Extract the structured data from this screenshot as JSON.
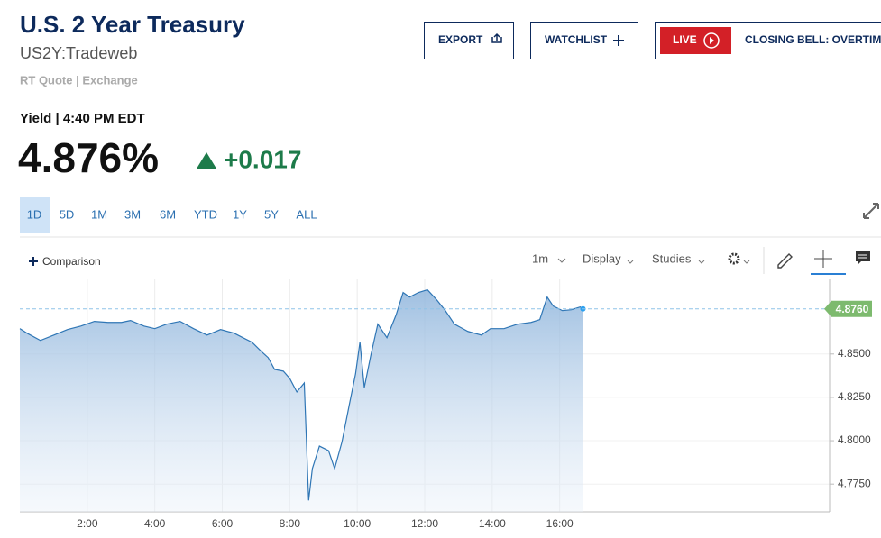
{
  "header": {
    "title": "U.S. 2 Year Treasury",
    "symbol": "US2Y:Tradeweb",
    "source": "RT Quote | Exchange"
  },
  "buttons": {
    "export": "EXPORT",
    "watchlist": "WATCHLIST",
    "live": "LIVE",
    "program": "CLOSING BELL: OVERTIME"
  },
  "quote": {
    "label": "Yield | 4:40 PM EDT",
    "price": "4.876%",
    "change": "+0.017"
  },
  "ranges": [
    "1D",
    "5D",
    "1M",
    "3M",
    "6M",
    "YTD",
    "1Y",
    "5Y",
    "ALL"
  ],
  "toolbar": {
    "comparison": "Comparison",
    "interval": "1m",
    "display": "Display",
    "studies": "Studies"
  },
  "chart_data": {
    "type": "area",
    "color": "#2f76b5",
    "x": [
      0,
      0.21,
      0.61,
      1.01,
      1.41,
      1.81,
      2.21,
      2.61,
      3.01,
      3.28,
      3.68,
      4.0,
      4.35,
      4.75,
      5.15,
      5.55,
      5.95,
      6.35,
      6.61,
      6.88,
      7.15,
      7.36,
      7.55,
      7.81,
      8.0,
      8.21,
      8.43,
      8.56,
      8.67,
      8.88,
      9.15,
      9.33,
      9.55,
      9.76,
      9.95,
      10.08,
      10.21,
      10.4,
      10.61,
      10.88,
      11.15,
      11.36,
      11.55,
      11.81,
      12.08,
      12.35,
      12.61,
      12.88,
      13.28,
      13.68,
      13.95,
      14.35,
      14.75,
      15.15,
      15.41,
      15.63,
      15.81,
      16.08,
      16.35,
      16.61,
      16.69
    ],
    "values": [
      4.8646,
      4.862,
      4.8578,
      4.8609,
      4.8641,
      4.8661,
      4.8688,
      4.8682,
      4.8682,
      4.8693,
      4.8661,
      4.8646,
      4.8672,
      4.8688,
      4.8646,
      4.8609,
      4.8641,
      4.862,
      4.8594,
      4.8568,
      4.8516,
      4.8479,
      4.8411,
      4.8401,
      4.8359,
      4.8281,
      4.8333,
      4.7656,
      4.7839,
      4.7969,
      4.7943,
      4.7839,
      4.7995,
      4.8203,
      4.8385,
      4.8568,
      4.8307,
      4.849,
      4.8672,
      4.8594,
      4.8724,
      4.8854,
      4.8828,
      4.8854,
      4.887,
      4.8813,
      4.875,
      4.8672,
      4.863,
      4.8609,
      4.8646,
      4.8646,
      4.8672,
      4.8682,
      4.8698,
      4.8828,
      4.8776,
      4.875,
      4.8755,
      4.8771,
      4.876
    ],
    "xlim": [
      0,
      24
    ],
    "ylim": [
      4.759,
      4.893
    ],
    "xticks": [
      {
        "value": 2,
        "label": "2:00"
      },
      {
        "value": 4,
        "label": "4:00"
      },
      {
        "value": 6,
        "label": "6:00"
      },
      {
        "value": 8,
        "label": "8:00"
      },
      {
        "value": 10,
        "label": "10:00"
      },
      {
        "value": 12,
        "label": "12:00"
      },
      {
        "value": 14,
        "label": "14:00"
      },
      {
        "value": 16,
        "label": "16:00"
      }
    ],
    "yticks": [
      {
        "value": 4.775,
        "label": "4.7750"
      },
      {
        "value": 4.8,
        "label": "4.8000"
      },
      {
        "value": 4.825,
        "label": "4.8250"
      },
      {
        "value": 4.85,
        "label": "4.8500"
      }
    ],
    "current_label": {
      "value": 4.876,
      "label": "4.8760"
    },
    "grid": true
  }
}
